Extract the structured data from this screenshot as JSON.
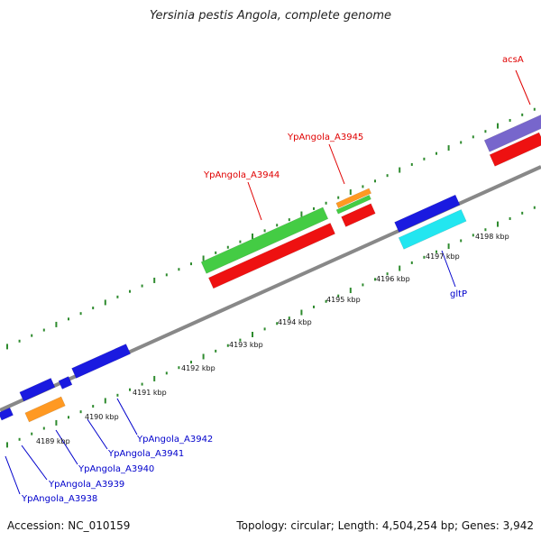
{
  "title": "Yersinia pestis Angola, complete genome",
  "footer": {
    "accession": "Accession: NC_010159",
    "summary": "Topology: circular; Length: 4,504,254 bp; Genes: 3,942"
  },
  "colors": {
    "backbone": "#888888",
    "tick": "#2e8b2e",
    "label_top": "#e00000",
    "label_bottom": "#0000cc",
    "feature_red": "#ee1111",
    "feature_green": "#44cc44",
    "feature_orange": "#ff9922",
    "feature_blue": "#1a1ae0",
    "feature_cyan": "#22e6f0",
    "feature_purple": "#7766cc"
  },
  "scale_labels": [
    "4189 kbp",
    "4190 kbp",
    "4191 kbp",
    "4192 kbp",
    "4193 kbp",
    "4194 kbp",
    "4195 kbp",
    "4196 kbp",
    "4197 kbp",
    "4198 kbp"
  ],
  "top_labels": [
    "acsA",
    "YpAngola_A3945",
    "YpAngola_A3944"
  ],
  "bottom_labels": [
    "gltP",
    "YpAngola_A3942",
    "YpAngola_A3941",
    "YpAngola_A3940",
    "YpAngola_A3939",
    "YpAngola_A3938"
  ]
}
